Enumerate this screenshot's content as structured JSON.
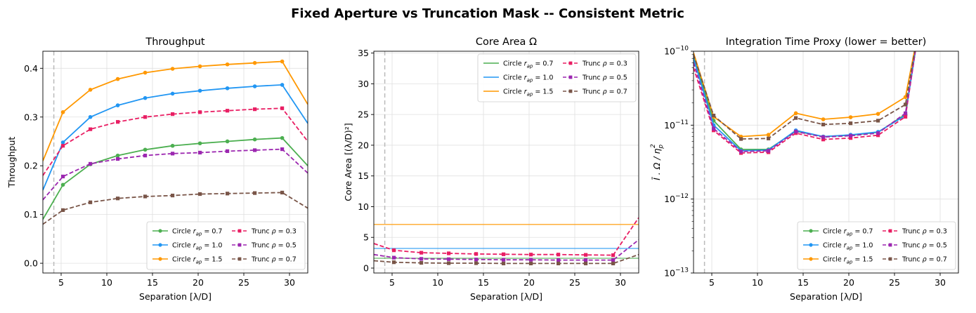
{
  "suptitle": "Fixed Aperture vs Truncation Mask -- Consistent Metric",
  "colors": {
    "circle_0_7": "#4caf50",
    "circle_1_0": "#2196f3",
    "circle_1_5": "#ff9800",
    "trunc_0_3": "#e91e63",
    "trunc_0_5": "#9c27b0",
    "trunc_0_7": "#795548",
    "iwa_line": "#bbbbbb",
    "grid": "#e0e0e0"
  },
  "legend_labels": {
    "circle_prefix": "Circle",
    "trunc_prefix": "Trunc",
    "circle_0_7": "= 0.7",
    "circle_1_0": "= 1.0",
    "circle_1_5": "= 1.5",
    "trunc_0_3": "= 0.3",
    "trunc_0_5": "= 0.5",
    "trunc_0_7": "= 0.7"
  },
  "chart_data": [
    {
      "type": "line",
      "title": "Throughput",
      "xlabel": "Separation [λ/D]",
      "ylabel": "Throughput",
      "xlim": [
        3,
        32
      ],
      "ylim": [
        -0.02,
        0.435
      ],
      "xticks": [
        5,
        10,
        15,
        20,
        25,
        30
      ],
      "yticks": [
        0.0,
        0.1,
        0.2,
        0.3,
        0.4
      ],
      "ytick_labels": [
        "0.0",
        "0.1",
        "0.2",
        "0.3",
        "0.4"
      ],
      "vline_x": 4.2,
      "grid": true,
      "legend_position": "lower-right",
      "x": [
        3,
        5.2,
        8.2,
        11.2,
        14.2,
        17.2,
        20.2,
        23.2,
        26.2,
        29.2,
        32
      ],
      "series": [
        {
          "key": "circle_0_7",
          "values": [
            0.09,
            0.161,
            0.203,
            0.221,
            0.233,
            0.241,
            0.246,
            0.25,
            0.254,
            0.257,
            0.2
          ],
          "dashed": false,
          "marker": "circle"
        },
        {
          "key": "circle_1_0",
          "values": [
            0.15,
            0.248,
            0.3,
            0.324,
            0.339,
            0.348,
            0.354,
            0.359,
            0.363,
            0.366,
            0.287
          ],
          "dashed": false,
          "marker": "circle"
        },
        {
          "key": "circle_1_5",
          "values": [
            0.21,
            0.31,
            0.356,
            0.378,
            0.391,
            0.399,
            0.404,
            0.408,
            0.411,
            0.414,
            0.326
          ],
          "dashed": false,
          "marker": "circle"
        },
        {
          "key": "trunc_0_3",
          "values": [
            0.18,
            0.241,
            0.275,
            0.29,
            0.3,
            0.306,
            0.31,
            0.313,
            0.316,
            0.318,
            0.25
          ],
          "dashed": true,
          "marker": "square"
        },
        {
          "key": "trunc_0_5",
          "values": [
            0.13,
            0.178,
            0.204,
            0.214,
            0.221,
            0.225,
            0.227,
            0.23,
            0.232,
            0.234,
            0.185
          ],
          "dashed": true,
          "marker": "square"
        },
        {
          "key": "trunc_0_7",
          "values": [
            0.08,
            0.109,
            0.125,
            0.133,
            0.137,
            0.139,
            0.142,
            0.143,
            0.144,
            0.145,
            0.113
          ],
          "dashed": true,
          "marker": "square"
        }
      ]
    },
    {
      "type": "line",
      "title": "Core Area Ω",
      "xlabel": "Separation [λ/D]",
      "ylabel": "Core Area [(λ/D)²]",
      "xlim": [
        3,
        32
      ],
      "ylim": [
        -0.8,
        35.3
      ],
      "xticks": [
        5,
        10,
        15,
        20,
        25,
        30
      ],
      "yticks": [
        0,
        5,
        10,
        15,
        20,
        25,
        30,
        35
      ],
      "ytick_labels": [
        "0",
        "5",
        "10",
        "15",
        "20",
        "25",
        "30",
        "35"
      ],
      "vline_x": 4.2,
      "grid": true,
      "legend_position": "top-right",
      "x": [
        3,
        5.2,
        8.2,
        11.2,
        14.2,
        17.2,
        20.2,
        23.2,
        26.2,
        29.2,
        32
      ],
      "series": [
        {
          "key": "circle_0_7",
          "values": [
            1.6,
            1.6,
            1.6,
            1.6,
            1.6,
            1.6,
            1.6,
            1.6,
            1.6,
            1.6,
            1.6
          ],
          "dashed": false,
          "marker": "none"
        },
        {
          "key": "circle_1_0",
          "values": [
            3.2,
            3.2,
            3.2,
            3.2,
            3.2,
            3.2,
            3.2,
            3.2,
            3.2,
            3.2,
            3.2
          ],
          "dashed": false,
          "marker": "none"
        },
        {
          "key": "circle_1_5",
          "values": [
            7.1,
            7.1,
            7.1,
            7.1,
            7.1,
            7.1,
            7.1,
            7.1,
            7.1,
            7.1,
            7.1
          ],
          "dashed": false,
          "marker": "none"
        },
        {
          "key": "trunc_0_3",
          "values": [
            4.0,
            2.9,
            2.5,
            2.4,
            2.3,
            2.25,
            2.2,
            2.2,
            2.15,
            2.1,
            8.2
          ],
          "dashed": true,
          "marker": "square"
        },
        {
          "key": "trunc_0_5",
          "values": [
            2.2,
            1.7,
            1.5,
            1.45,
            1.4,
            1.35,
            1.35,
            1.3,
            1.3,
            1.3,
            4.6
          ],
          "dashed": true,
          "marker": "square"
        },
        {
          "key": "trunc_0_7",
          "values": [
            1.2,
            0.95,
            0.85,
            0.8,
            0.8,
            0.75,
            0.75,
            0.75,
            0.75,
            0.75,
            2.2
          ],
          "dashed": true,
          "marker": "square"
        }
      ]
    },
    {
      "type": "line",
      "title": "Integration Time Proxy (lower = better)",
      "xlabel": "Separation [λ/D]",
      "ylabel": "Ī · Ω / η_p²",
      "ylabel_parts": {
        "main": "Ī . Ω / η",
        "sub": "p",
        "sup": "2"
      },
      "xlim": [
        3,
        32
      ],
      "yscale": "log",
      "ylim": [
        1e-13,
        1e-10
      ],
      "xticks": [
        5,
        10,
        15,
        20,
        25,
        30
      ],
      "yticks": [
        1e-13,
        1e-12,
        1e-11,
        1e-10
      ],
      "ytick_labels": [
        {
          "base": "10",
          "exp": "−13"
        },
        {
          "base": "10",
          "exp": "−12"
        },
        {
          "base": "10",
          "exp": "−11"
        },
        {
          "base": "10",
          "exp": "−10"
        }
      ],
      "vline_x": 4.2,
      "grid": true,
      "legend_position": "lower-right",
      "x": [
        3,
        5.2,
        8.2,
        11.2,
        14.2,
        17.2,
        20.2,
        23.2,
        26.2,
        27.5
      ],
      "series": [
        {
          "key": "circle_0_7",
          "values": [
            8.5e-11,
            1.15e-11,
            4.7e-12,
            4.7e-12,
            8.3e-12,
            7e-12,
            7.3e-12,
            8e-12,
            1.4e-11,
            1.5e-10
          ],
          "dashed": false,
          "marker": "circle"
        },
        {
          "key": "circle_1_0",
          "values": [
            8e-11,
            1e-11,
            4.5e-12,
            4.6e-12,
            8.5e-12,
            7e-12,
            7.4e-12,
            8.1e-12,
            1.35e-11,
            1.5e-10
          ],
          "dashed": false,
          "marker": "circle"
        },
        {
          "key": "circle_1_5",
          "values": [
            9.5e-11,
            1.3e-11,
            7e-12,
            7.4e-12,
            1.45e-11,
            1.2e-11,
            1.28e-11,
            1.42e-11,
            2.4e-11,
            1.6e-10
          ],
          "dashed": false,
          "marker": "circle"
        },
        {
          "key": "trunc_0_3",
          "values": [
            6e-11,
            8.5e-12,
            4.2e-12,
            4.3e-12,
            7.8e-12,
            6.4e-12,
            6.7e-12,
            7.3e-12,
            1.3e-11,
            1.5e-10
          ],
          "dashed": true,
          "marker": "square"
        },
        {
          "key": "trunc_0_5",
          "values": [
            7e-11,
            9e-12,
            4.4e-12,
            4.5e-12,
            8.2e-12,
            6.9e-12,
            7.2e-12,
            7.8e-12,
            1.45e-11,
            1.5e-10
          ],
          "dashed": true,
          "marker": "square"
        },
        {
          "key": "trunc_0_7",
          "values": [
            9e-11,
            1.35e-11,
            6.5e-12,
            6.6e-12,
            1.25e-11,
            1.02e-11,
            1.06e-11,
            1.15e-11,
            1.9e-11,
            1.6e-10
          ],
          "dashed": true,
          "marker": "square"
        }
      ]
    }
  ]
}
